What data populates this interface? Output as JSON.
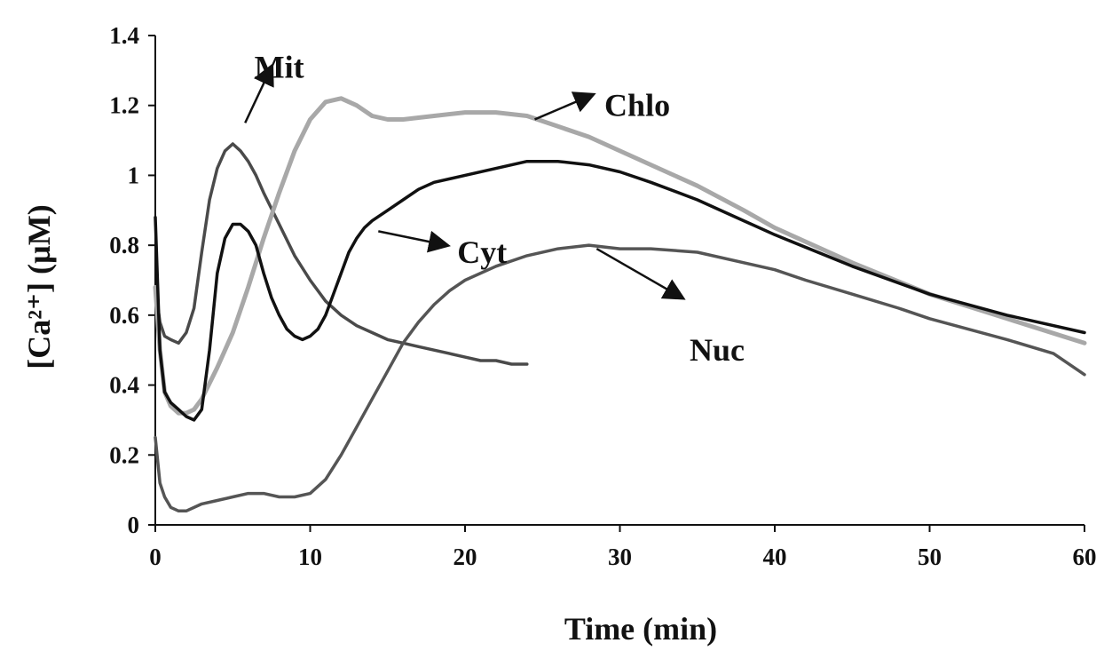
{
  "chart_data": {
    "type": "line",
    "title": "",
    "xlabel": "Time (min)",
    "ylabel": "[Ca²⁺] (µM)",
    "xlim": [
      0,
      60
    ],
    "ylim": [
      0,
      1.4
    ],
    "x_ticks": [
      "0",
      "10",
      "20",
      "30",
      "40",
      "50",
      "60"
    ],
    "y_ticks": [
      "0",
      "0.2",
      "0.4",
      "0.6",
      "0.8",
      "1",
      "1.2",
      "1.4"
    ],
    "grid": false,
    "legend": "none (series labelled directly with arrows)",
    "series": [
      {
        "name": "Mit",
        "color": "#4a4a4a",
        "x": [
          0,
          0.3,
          0.6,
          1,
          1.5,
          2,
          2.5,
          3,
          3.5,
          4,
          4.5,
          5,
          5.5,
          6,
          6.5,
          7,
          8,
          9,
          10,
          11,
          12,
          13,
          14,
          15,
          16,
          17,
          18,
          19,
          20,
          21,
          22,
          23,
          24
        ],
        "y": [
          0.68,
          0.58,
          0.54,
          0.53,
          0.52,
          0.55,
          0.62,
          0.78,
          0.93,
          1.02,
          1.07,
          1.09,
          1.07,
          1.04,
          1.0,
          0.95,
          0.86,
          0.77,
          0.7,
          0.64,
          0.6,
          0.57,
          0.55,
          0.53,
          0.52,
          0.51,
          0.5,
          0.49,
          0.48,
          0.47,
          0.47,
          0.46,
          0.46
        ]
      },
      {
        "name": "Chlo",
        "color": "#a8a8a8",
        "x": [
          0,
          0.3,
          0.6,
          1,
          1.5,
          2,
          2.5,
          3,
          4,
          5,
          6,
          7,
          8,
          9,
          10,
          11,
          12,
          13,
          14,
          15,
          16,
          18,
          20,
          22,
          24,
          26,
          28,
          30,
          32,
          35,
          38,
          40,
          45,
          50,
          55,
          60
        ],
        "y": [
          0.68,
          0.5,
          0.38,
          0.34,
          0.32,
          0.32,
          0.33,
          0.36,
          0.45,
          0.55,
          0.68,
          0.82,
          0.95,
          1.07,
          1.16,
          1.21,
          1.22,
          1.2,
          1.17,
          1.16,
          1.16,
          1.17,
          1.18,
          1.18,
          1.17,
          1.14,
          1.11,
          1.07,
          1.03,
          0.97,
          0.9,
          0.85,
          0.75,
          0.66,
          0.59,
          0.52
        ]
      },
      {
        "name": "Cyt",
        "color": "#111111",
        "x": [
          0,
          0.3,
          0.6,
          1,
          1.5,
          2,
          2.5,
          3,
          3.5,
          4,
          4.5,
          5,
          5.5,
          6,
          6.5,
          7,
          7.5,
          8,
          8.5,
          9,
          9.5,
          10,
          10.5,
          11,
          11.5,
          12,
          12.5,
          13,
          13.5,
          14,
          15,
          16,
          17,
          18,
          20,
          22,
          24,
          25,
          26,
          28,
          30,
          32,
          35,
          38,
          40,
          45,
          50,
          55,
          60
        ],
        "y": [
          0.88,
          0.5,
          0.38,
          0.35,
          0.33,
          0.31,
          0.3,
          0.33,
          0.5,
          0.72,
          0.82,
          0.86,
          0.86,
          0.84,
          0.8,
          0.72,
          0.65,
          0.6,
          0.56,
          0.54,
          0.53,
          0.54,
          0.56,
          0.6,
          0.66,
          0.72,
          0.78,
          0.82,
          0.85,
          0.87,
          0.9,
          0.93,
          0.96,
          0.98,
          1.0,
          1.02,
          1.04,
          1.04,
          1.04,
          1.03,
          1.01,
          0.98,
          0.93,
          0.87,
          0.83,
          0.74,
          0.66,
          0.6,
          0.55
        ]
      },
      {
        "name": "Nuc",
        "color": "#555555",
        "x": [
          0,
          0.3,
          0.6,
          1,
          1.5,
          2,
          3,
          4,
          5,
          6,
          7,
          8,
          9,
          10,
          11,
          12,
          13,
          14,
          15,
          16,
          17,
          18,
          19,
          20,
          22,
          24,
          26,
          28,
          30,
          32,
          35,
          38,
          40,
          42,
          45,
          48,
          50,
          55,
          58,
          60
        ],
        "y": [
          0.25,
          0.12,
          0.08,
          0.05,
          0.04,
          0.04,
          0.06,
          0.07,
          0.08,
          0.09,
          0.09,
          0.08,
          0.08,
          0.09,
          0.13,
          0.2,
          0.28,
          0.36,
          0.44,
          0.52,
          0.58,
          0.63,
          0.67,
          0.7,
          0.74,
          0.77,
          0.79,
          0.8,
          0.79,
          0.79,
          0.78,
          0.75,
          0.73,
          0.7,
          0.66,
          0.62,
          0.59,
          0.53,
          0.49,
          0.43
        ]
      }
    ],
    "annotations": [
      {
        "text": "Mit",
        "series": "Mit"
      },
      {
        "text": "Chlo",
        "series": "Chlo"
      },
      {
        "text": "Cyt",
        "series": "Cyt"
      },
      {
        "text": "Nuc",
        "series": "Nuc"
      }
    ]
  }
}
